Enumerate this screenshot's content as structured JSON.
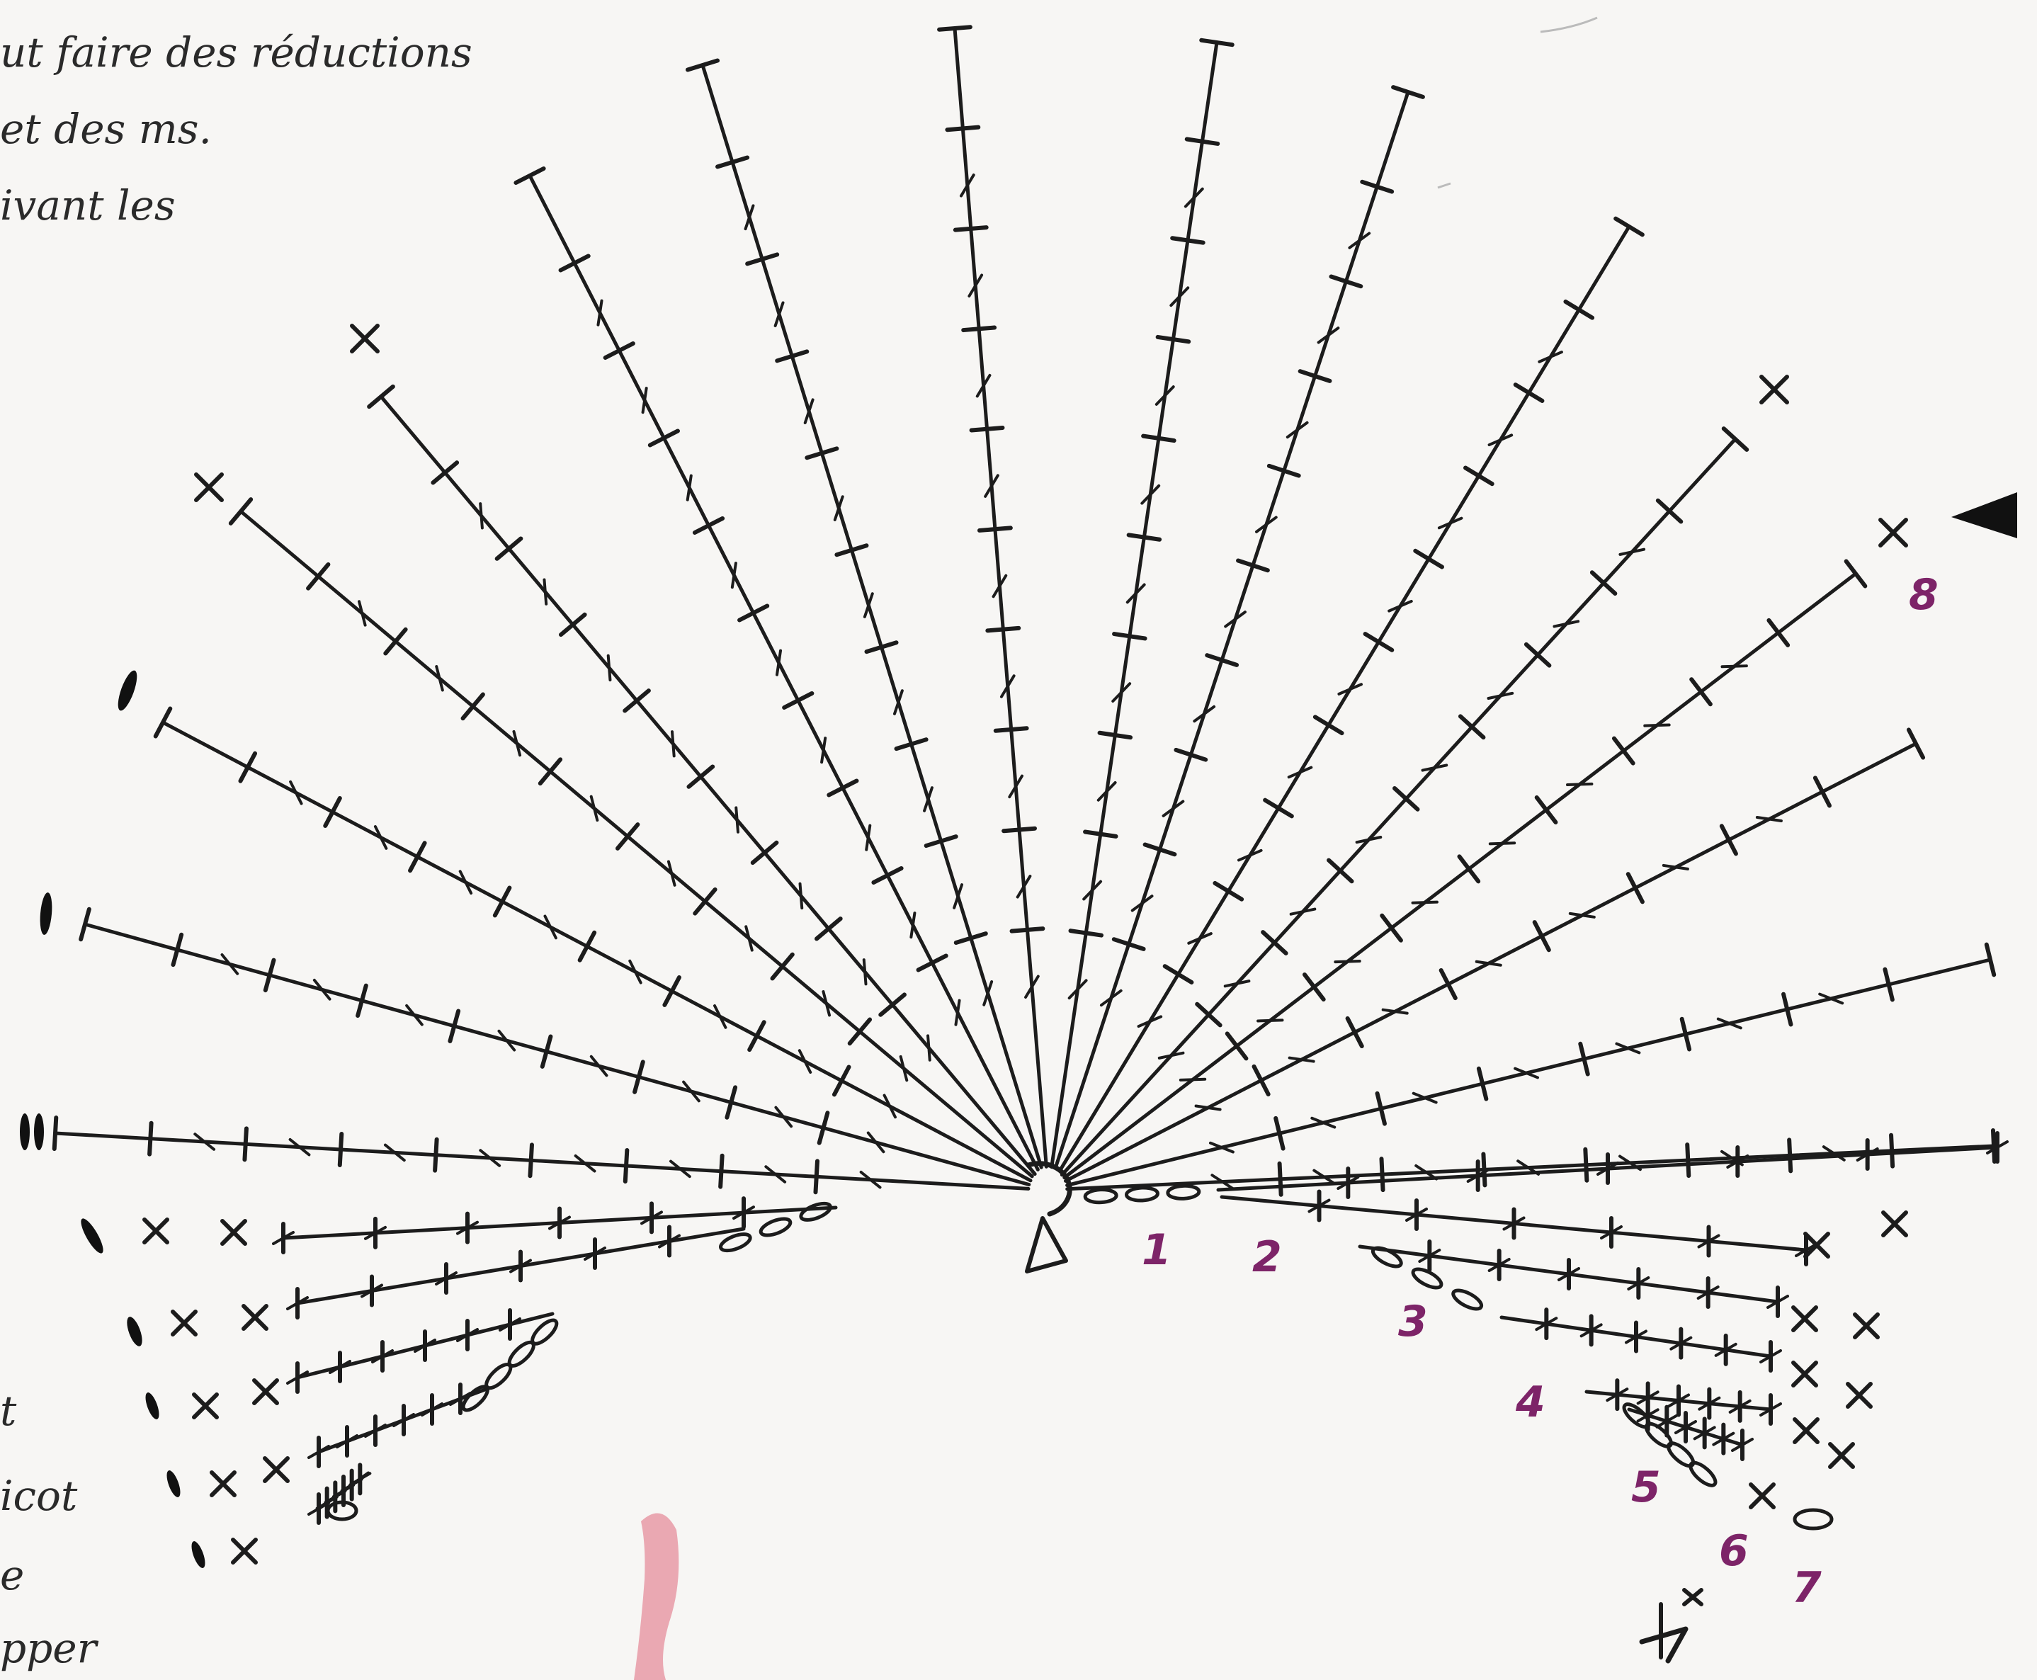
{
  "text_fragments": [
    "ut faire des réductions",
    "et des ms.",
    "ivant les",
    "t",
    "icot",
    "e",
    "pper"
  ],
  "row_labels": [
    "1",
    "2",
    "3",
    "4",
    "5",
    "6",
    "7",
    "8"
  ],
  "colors": {
    "ink": "#1c1c1c",
    "row_number": "#7d2468",
    "pink_mark": "#e79aa6",
    "paper": "#f7f6f4"
  },
  "symbols": [
    "chain-stitch",
    "double-crochet",
    "single-crochet",
    "slip-stitch",
    "picot",
    "start-arrow",
    "fasten-off"
  ]
}
